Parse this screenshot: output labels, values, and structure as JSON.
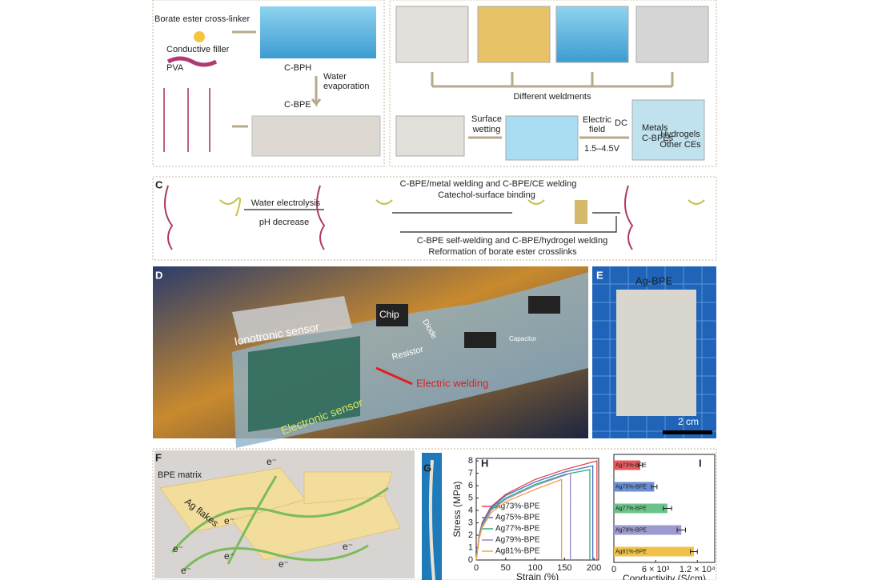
{
  "panel_a": {
    "crosslinker": "Borate ester cross-linker",
    "filler": "Conductive filler",
    "pva": "PVA",
    "hydrogel": "C-BPH",
    "step": [
      "Water",
      "evaporation"
    ],
    "elastomer": "C-BPE"
  },
  "panel_b": {
    "weldments": "Different weldments",
    "wetting": [
      "Surface",
      "wetting"
    ],
    "field": [
      "Electric",
      "field"
    ],
    "dc": "DC",
    "voltage": "1.5–4.5V",
    "targets": [
      "Metals",
      "C-BPEs",
      "Hydrogels",
      "Other CEs"
    ]
  },
  "panel_c": {
    "label": "C",
    "electrolysis": "Water electrolysis",
    "ph": "pH decrease",
    "metal_welding": "C-BPE/metal welding and C-BPE/CE welding",
    "binding": "Catechol-surface binding",
    "self_welding": "C-BPE self-welding and C-BPE/hydrogel welding",
    "reformation": "Reformation of borate ester crosslinks"
  },
  "panel_d": {
    "label": "D",
    "ionotronic": "Ionotronic sensor",
    "electronic": "Electronic sensor",
    "components": [
      "Chip",
      "Diode",
      "Resistor",
      "Capacitor"
    ],
    "welding": "Electric welding"
  },
  "panel_e": {
    "label": "E",
    "sample": "Ag-BPE",
    "scale": "2 cm"
  },
  "panel_f": {
    "label": "F",
    "matrix": "BPE matrix",
    "flakes": "Ag flakes",
    "electron": "e⁻"
  },
  "panel_g": {
    "label": "G"
  },
  "panel_h": {
    "type": "line",
    "label": "H",
    "xlabel": "Strain (%)",
    "ylabel": "Stress (MPa)",
    "xlim": [
      0,
      208
    ],
    "ylim": [
      0,
      8.2
    ],
    "xticks": [
      0,
      50,
      100,
      150,
      200
    ],
    "yticks": [
      0,
      1,
      2,
      3,
      4,
      5,
      6,
      7,
      8
    ],
    "series": [
      {
        "name": "Ag73%-BPE",
        "color": "#e8464b",
        "x": [
          0,
          5,
          10,
          25,
          50,
          100,
          150,
          205,
          205
        ],
        "values": [
          0,
          2.0,
          3.0,
          4.3,
          5.3,
          6.5,
          7.3,
          8.0,
          0
        ]
      },
      {
        "name": "Ag75%-BPE",
        "color": "#3f72c4",
        "x": [
          0,
          5,
          10,
          25,
          50,
          100,
          150,
          198,
          198
        ],
        "values": [
          0,
          1.9,
          2.9,
          4.2,
          5.2,
          6.3,
          7.1,
          7.6,
          0
        ]
      },
      {
        "name": "Ag77%-BPE",
        "color": "#2fb07a",
        "x": [
          0,
          5,
          10,
          25,
          50,
          100,
          150,
          193,
          193
        ],
        "values": [
          0,
          1.9,
          2.8,
          4.1,
          5.0,
          6.1,
          6.9,
          7.3,
          0
        ]
      },
      {
        "name": "Ag79%-BPE",
        "color": "#9b86c9",
        "x": [
          0,
          5,
          10,
          25,
          50,
          100,
          160,
          160
        ],
        "values": [
          0,
          1.8,
          2.7,
          4.0,
          4.9,
          6.0,
          7.0,
          0
        ]
      },
      {
        "name": "Ag81%-BPE",
        "color": "#f2a14a",
        "x": [
          0,
          5,
          10,
          25,
          50,
          100,
          145,
          145
        ],
        "values": [
          0,
          1.7,
          2.6,
          3.8,
          4.7,
          5.7,
          6.5,
          0
        ]
      }
    ]
  },
  "panel_i": {
    "type": "bar",
    "label": "I",
    "xlabel": "Conductivity (S/cm)",
    "categories": [
      "Ag73%-BPE",
      "Ag75%-BPE",
      "Ag77%-BPE",
      "Ag79%-BPE",
      "Ag81%-BPE"
    ],
    "values": [
      3800,
      5800,
      7700,
      9700,
      11500
    ],
    "errors": [
      300,
      400,
      600,
      600,
      500
    ],
    "colors": [
      "#e8595c",
      "#6b8fd2",
      "#6cc48a",
      "#9d9ad0",
      "#f0c24a"
    ],
    "xlim": [
      0,
      14500
    ],
    "xticks": [
      0,
      {
        "value": 6000,
        "label": "6 × 10³"
      },
      {
        "value": 12000,
        "label": "1.2 × 10⁴"
      }
    ]
  }
}
